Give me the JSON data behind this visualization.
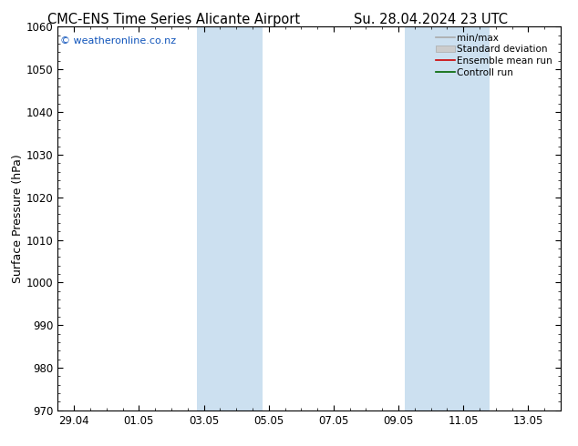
{
  "title_left": "CMC-ENS Time Series Alicante Airport",
  "title_right": "Su. 28.04.2024 23 UTC",
  "ylabel": "Surface Pressure (hPa)",
  "watermark": "© weatheronline.co.nz",
  "ylim": [
    970,
    1060
  ],
  "yticks": [
    970,
    980,
    990,
    1000,
    1010,
    1020,
    1030,
    1040,
    1050,
    1060
  ],
  "xtick_labels": [
    "29.04",
    "01.05",
    "03.05",
    "05.05",
    "07.05",
    "09.05",
    "11.05",
    "13.05"
  ],
  "x_positions": [
    0,
    2,
    4,
    6,
    8,
    10,
    12,
    14
  ],
  "xlim": [
    -0.5,
    15.0
  ],
  "shaded_bands": [
    {
      "x_start": 3.8,
      "x_end": 5.8
    },
    {
      "x_start": 10.2,
      "x_end": 12.8
    }
  ],
  "shade_color": "#cce0f0",
  "background_color": "#ffffff",
  "legend_entries": [
    {
      "label": "min/max",
      "color": "#aaaaaa",
      "lw": 1.2,
      "style": "-",
      "type": "line"
    },
    {
      "label": "Standard deviation",
      "color": "#cccccc",
      "lw": 6,
      "style": "-",
      "type": "patch"
    },
    {
      "label": "Ensemble mean run",
      "color": "#cc0000",
      "lw": 1.2,
      "style": "-",
      "type": "line"
    },
    {
      "label": "Controll run",
      "color": "#006600",
      "lw": 1.2,
      "style": "-",
      "type": "line"
    }
  ],
  "title_fontsize": 10.5,
  "axis_label_fontsize": 9,
  "tick_fontsize": 8.5,
  "watermark_fontsize": 8,
  "watermark_color": "#1155bb"
}
